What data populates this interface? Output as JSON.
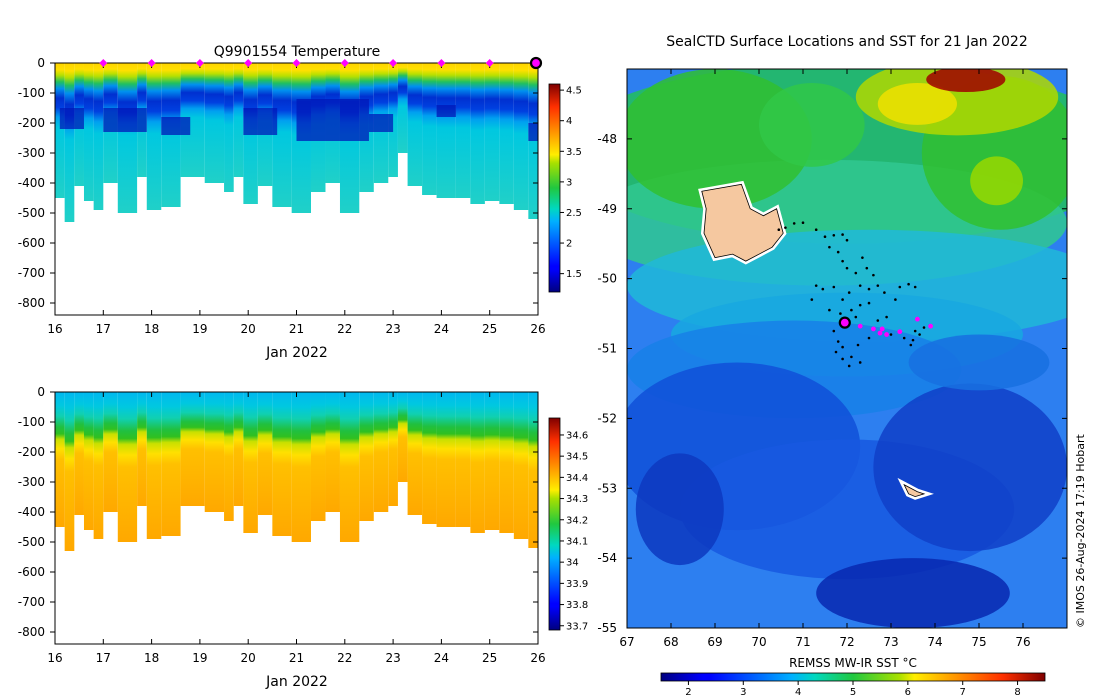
{
  "colors": {
    "background": "#ffffff",
    "land": "#f5c8a0",
    "land_edge": "#000000",
    "no_data": "#ffffff",
    "track_dot": "#000000",
    "profile_marker": "#ff00ff",
    "current_marker_fill": "#ff00ff",
    "current_marker_edge": "#000000"
  },
  "chart_data": [
    {
      "id": "temperature-section",
      "type": "heatmap",
      "title": "Q9901554  Temperature",
      "xlabel": "Jan 2022",
      "ylabel": "",
      "xlim": [
        16,
        26
      ],
      "ylim": [
        -840,
        0
      ],
      "xticks": [
        "16",
        "17",
        "18",
        "19",
        "20",
        "21",
        "22",
        "23",
        "24",
        "25",
        "26"
      ],
      "yticks": [
        "0",
        "-100",
        "-200",
        "-300",
        "-400",
        "-500",
        "-600",
        "-700",
        "-800"
      ],
      "colorbar": {
        "range": [
          1.2,
          4.6
        ],
        "ticks": [
          "1.5",
          "2",
          "2.5",
          "3",
          "3.5",
          "4",
          "4.5"
        ],
        "colormap": "jet"
      },
      "surface_markers_x": [
        17,
        18,
        19,
        20,
        21,
        22,
        23,
        24,
        25
      ],
      "current_marker_x": 26,
      "profile_depths": [
        {
          "x": 16.0,
          "bottom": -450
        },
        {
          "x": 16.2,
          "bottom": -530
        },
        {
          "x": 16.4,
          "bottom": -410
        },
        {
          "x": 16.6,
          "bottom": -460
        },
        {
          "x": 16.8,
          "bottom": -490
        },
        {
          "x": 17.0,
          "bottom": -400
        },
        {
          "x": 17.3,
          "bottom": -500
        },
        {
          "x": 17.7,
          "bottom": -380
        },
        {
          "x": 17.9,
          "bottom": -490
        },
        {
          "x": 18.2,
          "bottom": -480
        },
        {
          "x": 18.6,
          "bottom": -380
        },
        {
          "x": 19.1,
          "bottom": -400
        },
        {
          "x": 19.5,
          "bottom": -430
        },
        {
          "x": 19.7,
          "bottom": -380
        },
        {
          "x": 19.9,
          "bottom": -470
        },
        {
          "x": 20.2,
          "bottom": -410
        },
        {
          "x": 20.5,
          "bottom": -480
        },
        {
          "x": 20.9,
          "bottom": -500
        },
        {
          "x": 21.3,
          "bottom": -430
        },
        {
          "x": 21.6,
          "bottom": -400
        },
        {
          "x": 21.9,
          "bottom": -500
        },
        {
          "x": 22.3,
          "bottom": -430
        },
        {
          "x": 22.6,
          "bottom": -400
        },
        {
          "x": 22.9,
          "bottom": -380
        },
        {
          "x": 23.1,
          "bottom": -300
        },
        {
          "x": 23.3,
          "bottom": -410
        },
        {
          "x": 23.6,
          "bottom": -440
        },
        {
          "x": 23.9,
          "bottom": -450
        },
        {
          "x": 24.3,
          "bottom": -450
        },
        {
          "x": 24.6,
          "bottom": -470
        },
        {
          "x": 24.9,
          "bottom": -460
        },
        {
          "x": 25.2,
          "bottom": -470
        },
        {
          "x": 25.5,
          "bottom": -490
        },
        {
          "x": 25.8,
          "bottom": -520
        }
      ]
    },
    {
      "id": "salinity-section",
      "type": "heatmap",
      "title": "",
      "xlabel": "Jan 2022",
      "ylabel": "",
      "xlim": [
        16,
        26
      ],
      "ylim": [
        -840,
        0
      ],
      "xticks": [
        "16",
        "17",
        "18",
        "19",
        "20",
        "21",
        "22",
        "23",
        "24",
        "25",
        "26"
      ],
      "yticks": [
        "0",
        "-100",
        "-200",
        "-300",
        "-400",
        "-500",
        "-600",
        "-700",
        "-800"
      ],
      "colorbar": {
        "range": [
          33.68,
          34.68
        ],
        "ticks": [
          "33.7",
          "33.8",
          "33.9",
          "34",
          "34.1",
          "34.2",
          "34.3",
          "34.4",
          "34.5",
          "34.6"
        ],
        "colormap": "jet"
      }
    },
    {
      "id": "sst-map",
      "type": "heatmap",
      "title": "SealCTD Surface Locations and SST for 21 Jan 2022",
      "xlabel": "",
      "ylabel": "",
      "xlim": [
        67,
        77
      ],
      "ylim": [
        -55,
        -47
      ],
      "xticks": [
        "67",
        "68",
        "69",
        "70",
        "71",
        "72",
        "73",
        "74",
        "75",
        "76"
      ],
      "yticks": [
        "-48",
        "-49",
        "-50",
        "-51",
        "-52",
        "-53",
        "-54",
        "-55"
      ],
      "colorbar": {
        "label": "REMSS MW-IR SST °C",
        "range": [
          1.5,
          8.5
        ],
        "ticks": [
          "2",
          "3",
          "4",
          "5",
          "6",
          "7",
          "8"
        ],
        "colormap": "jet"
      },
      "current_location": {
        "lon": 71.95,
        "lat": -50.63
      },
      "recent_locations": [
        {
          "lon": 72.3,
          "lat": -50.68
        },
        {
          "lon": 72.6,
          "lat": -50.72
        },
        {
          "lon": 72.75,
          "lat": -50.78
        },
        {
          "lon": 72.9,
          "lat": -50.8
        },
        {
          "lon": 73.2,
          "lat": -50.76
        },
        {
          "lon": 73.6,
          "lat": -50.58
        },
        {
          "lon": 73.9,
          "lat": -50.68
        },
        {
          "lon": 72.8,
          "lat": -50.72
        }
      ],
      "track_points": [
        {
          "lon": 70.45,
          "lat": -49.3
        },
        {
          "lon": 70.6,
          "lat": -49.27
        },
        {
          "lon": 70.8,
          "lat": -49.21
        },
        {
          "lon": 71.0,
          "lat": -49.2
        },
        {
          "lon": 71.3,
          "lat": -49.3
        },
        {
          "lon": 71.5,
          "lat": -49.4
        },
        {
          "lon": 71.7,
          "lat": -49.38
        },
        {
          "lon": 71.9,
          "lat": -49.37
        },
        {
          "lon": 72.0,
          "lat": -49.45
        },
        {
          "lon": 71.6,
          "lat": -49.55
        },
        {
          "lon": 71.8,
          "lat": -49.62
        },
        {
          "lon": 71.9,
          "lat": -49.75
        },
        {
          "lon": 72.0,
          "lat": -49.85
        },
        {
          "lon": 72.2,
          "lat": -49.92
        },
        {
          "lon": 72.35,
          "lat": -49.7
        },
        {
          "lon": 72.45,
          "lat": -49.85
        },
        {
          "lon": 72.6,
          "lat": -49.95
        },
        {
          "lon": 72.3,
          "lat": -50.1
        },
        {
          "lon": 72.5,
          "lat": -50.15
        },
        {
          "lon": 72.7,
          "lat": -50.1
        },
        {
          "lon": 72.85,
          "lat": -50.2
        },
        {
          "lon": 72.05,
          "lat": -50.2
        },
        {
          "lon": 71.9,
          "lat": -50.3
        },
        {
          "lon": 71.7,
          "lat": -50.12
        },
        {
          "lon": 71.45,
          "lat": -50.15
        },
        {
          "lon": 71.3,
          "lat": -50.1
        },
        {
          "lon": 71.2,
          "lat": -50.3
        },
        {
          "lon": 71.6,
          "lat": -50.45
        },
        {
          "lon": 71.85,
          "lat": -50.5
        },
        {
          "lon": 72.1,
          "lat": -50.45
        },
        {
          "lon": 72.3,
          "lat": -50.38
        },
        {
          "lon": 72.5,
          "lat": -50.35
        },
        {
          "lon": 72.2,
          "lat": -50.55
        },
        {
          "lon": 71.7,
          "lat": -50.75
        },
        {
          "lon": 71.8,
          "lat": -50.9
        },
        {
          "lon": 71.9,
          "lat": -50.98
        },
        {
          "lon": 71.75,
          "lat": -51.05
        },
        {
          "lon": 71.9,
          "lat": -51.15
        },
        {
          "lon": 72.1,
          "lat": -51.12
        },
        {
          "lon": 72.05,
          "lat": -51.25
        },
        {
          "lon": 72.3,
          "lat": -51.2
        },
        {
          "lon": 72.25,
          "lat": -50.95
        },
        {
          "lon": 72.5,
          "lat": -50.85
        },
        {
          "lon": 73.0,
          "lat": -50.8
        },
        {
          "lon": 73.3,
          "lat": -50.85
        },
        {
          "lon": 73.45,
          "lat": -50.95
        },
        {
          "lon": 73.5,
          "lat": -50.88
        },
        {
          "lon": 73.65,
          "lat": -50.8
        },
        {
          "lon": 73.75,
          "lat": -50.7
        },
        {
          "lon": 73.55,
          "lat": -50.75
        },
        {
          "lon": 73.2,
          "lat": -50.12
        },
        {
          "lon": 73.4,
          "lat": -50.08
        },
        {
          "lon": 73.55,
          "lat": -50.12
        },
        {
          "lon": 73.1,
          "lat": -50.3
        },
        {
          "lon": 72.7,
          "lat": -50.6
        },
        {
          "lon": 72.9,
          "lat": -50.55
        }
      ]
    }
  ],
  "copyright": "© IMOS 26-Aug-2024 17:19 Hobart"
}
